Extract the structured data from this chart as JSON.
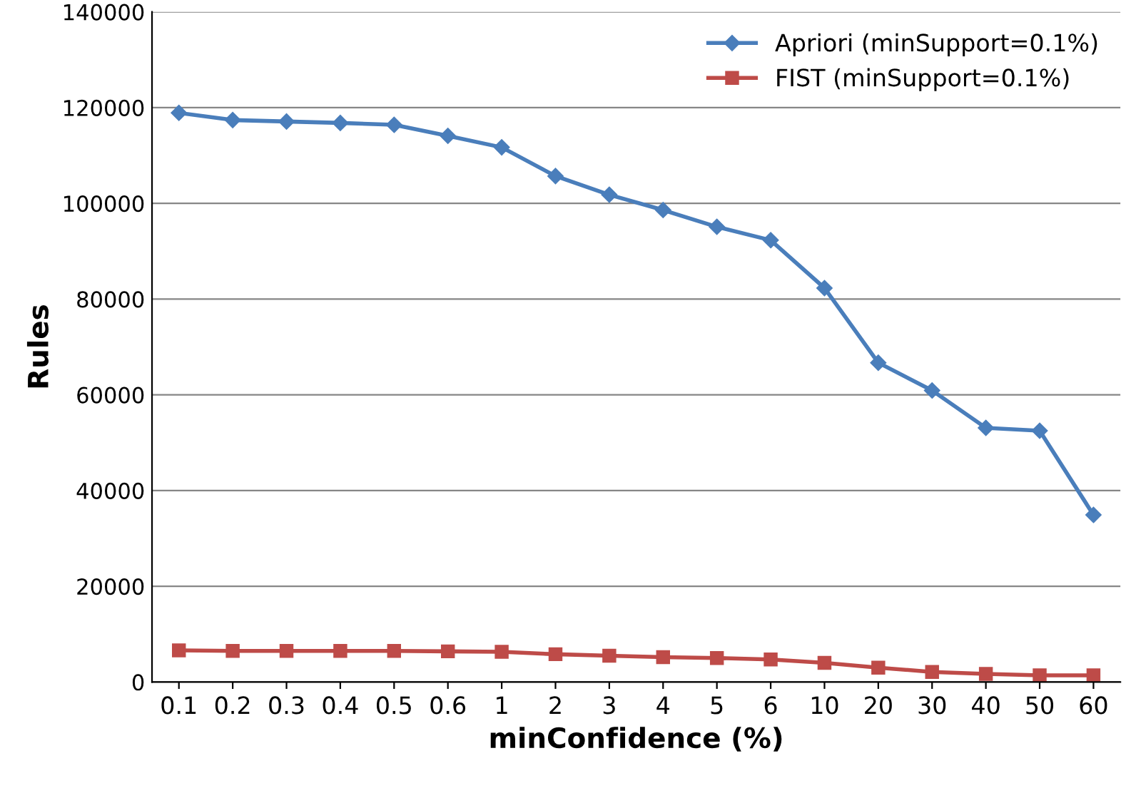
{
  "chart_data": {
    "type": "line",
    "xlabel": "minConfidence (%)",
    "ylabel": "Rules",
    "categories": [
      "0.1",
      "0.2",
      "0.3",
      "0.4",
      "0.5",
      "0.6",
      "1",
      "2",
      "3",
      "4",
      "5",
      "6",
      "10",
      "20",
      "30",
      "40",
      "50",
      "60"
    ],
    "series": [
      {
        "name": "Apriori (minSupport=0.1%)",
        "color": "#4a7ebb",
        "marker": "diamond",
        "values": [
          118900,
          117400,
          117100,
          116800,
          116400,
          114100,
          111700,
          105700,
          101800,
          98600,
          95100,
          92300,
          82300,
          66700,
          60900,
          53100,
          52500,
          34900
        ]
      },
      {
        "name": "FIST (minSupport=0.1%)",
        "color": "#be4b48",
        "marker": "square",
        "values": [
          6600,
          6500,
          6500,
          6500,
          6500,
          6400,
          6300,
          5800,
          5500,
          5200,
          5000,
          4700,
          4000,
          3000,
          2100,
          1700,
          1400,
          1400
        ]
      }
    ],
    "ylim": [
      0,
      140000
    ],
    "yticks": [
      0,
      20000,
      40000,
      60000,
      80000,
      100000,
      120000,
      140000
    ],
    "grid": "y",
    "legend": "top right",
    "line_style": "solid"
  }
}
